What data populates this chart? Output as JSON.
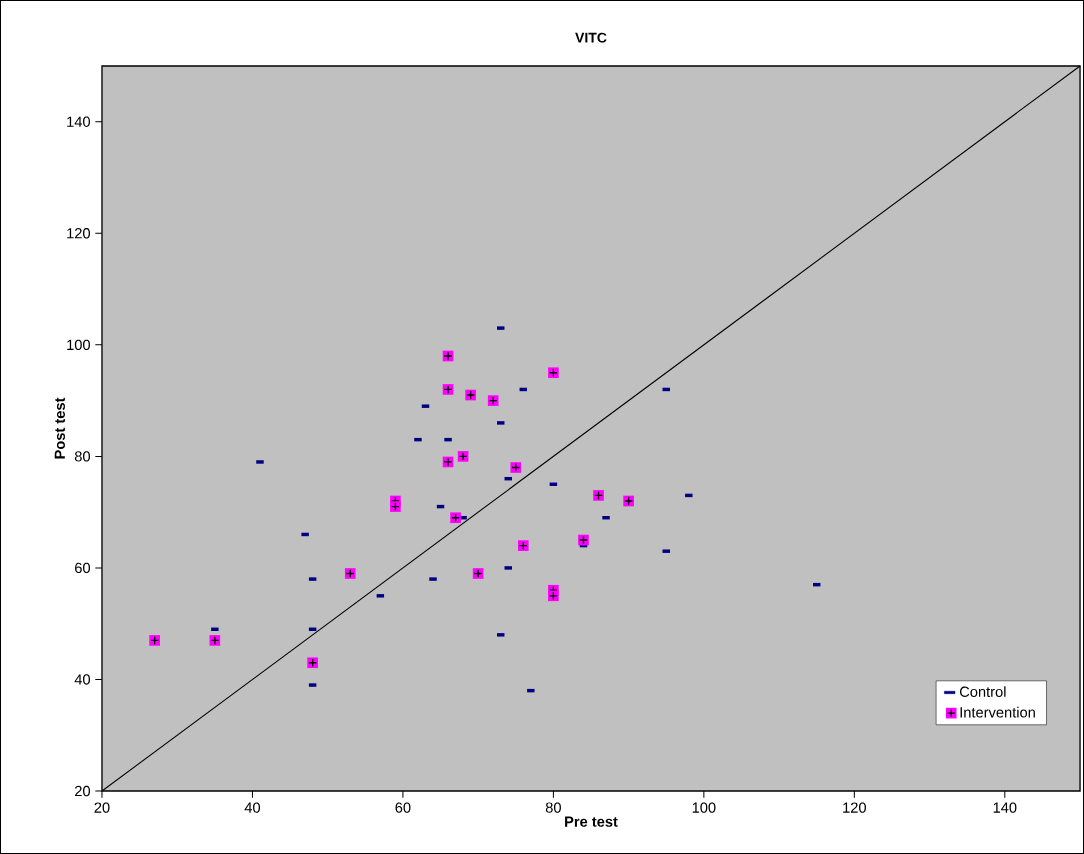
{
  "chart_data": {
    "type": "scatter",
    "title": "VITC",
    "xlabel": "Pre test",
    "ylabel": "Post test",
    "xlim": [
      20,
      150
    ],
    "ylim": [
      20,
      150
    ],
    "xticks": [
      20,
      40,
      60,
      80,
      100,
      120,
      140
    ],
    "yticks": [
      20,
      40,
      60,
      80,
      100,
      120,
      140
    ],
    "grid": false,
    "legend": "bottom right",
    "series": [
      {
        "name": "Control",
        "color": "#000080",
        "x": [
          35,
          41,
          47,
          48,
          48,
          48,
          57,
          62,
          63,
          66,
          64,
          65,
          68,
          73,
          73,
          76,
          74,
          74,
          73,
          77,
          80,
          84,
          87,
          95,
          95,
          98,
          115
        ],
        "values": [
          49,
          79,
          66,
          58,
          49,
          39,
          55,
          83,
          89,
          83,
          58,
          71,
          69,
          103,
          86,
          92,
          76,
          60,
          48,
          38,
          75,
          64,
          69,
          92,
          63,
          73,
          57
        ]
      },
      {
        "name": "Intervention",
        "color": "#ff00ff",
        "marker": "square",
        "x": [
          27,
          35,
          48,
          53,
          59,
          59,
          66,
          66,
          66,
          69,
          72,
          68,
          75,
          67,
          70,
          76,
          80,
          80,
          80,
          84,
          86,
          90
        ],
        "values": [
          47,
          47,
          43,
          59,
          72,
          71,
          98,
          92,
          79,
          91,
          90,
          80,
          78,
          69,
          59,
          64,
          95,
          56,
          55,
          65,
          73,
          72
        ]
      },
      {
        "type": "line",
        "color": "#000000",
        "marker": "none",
        "x": [
          20,
          150
        ],
        "values": [
          20,
          150
        ]
      }
    ]
  }
}
